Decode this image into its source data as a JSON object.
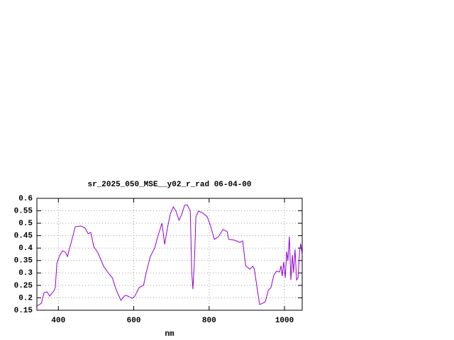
{
  "chart_data": {
    "type": "line",
    "title": "sr_2025_050_MSE__y02_r_rad 06-04-00",
    "xlabel": "nm",
    "x": [
      343,
      355,
      362,
      370,
      377,
      389,
      392,
      396,
      404,
      411,
      419,
      424,
      434,
      445,
      460,
      471,
      479,
      486,
      494,
      505,
      520,
      532,
      543,
      554,
      566,
      577,
      584,
      596,
      603,
      614,
      626,
      633,
      644,
      656,
      663,
      675,
      682,
      690,
      697,
      705,
      712,
      720,
      727,
      735,
      742,
      750,
      754,
      757,
      761,
      765,
      772,
      784,
      795,
      803,
      814,
      825,
      837,
      848,
      852,
      867,
      882,
      889,
      897,
      908,
      916,
      920,
      927,
      934,
      942,
      949,
      957,
      964,
      972,
      979,
      987,
      991,
      994,
      998,
      1002,
      1006,
      1009,
      1013,
      1017,
      1021,
      1024,
      1028,
      1032,
      1036,
      1040,
      1043,
      1047
    ],
    "series": [
      {
        "color": "#9400d3",
        "values": [
          0.167,
          0.178,
          0.221,
          0.224,
          0.207,
          0.23,
          0.244,
          0.338,
          0.372,
          0.389,
          0.383,
          0.366,
          0.423,
          0.486,
          0.489,
          0.48,
          0.458,
          0.463,
          0.406,
          0.381,
          0.327,
          0.301,
          0.281,
          0.23,
          0.19,
          0.21,
          0.207,
          0.198,
          0.207,
          0.241,
          0.25,
          0.301,
          0.366,
          0.401,
          0.443,
          0.5,
          0.415,
          0.486,
          0.537,
          0.566,
          0.549,
          0.512,
          0.534,
          0.572,
          0.574,
          0.549,
          0.301,
          0.235,
          0.344,
          0.526,
          0.549,
          0.54,
          0.526,
          0.492,
          0.435,
          0.446,
          0.475,
          0.466,
          0.435,
          0.432,
          0.423,
          0.429,
          0.329,
          0.315,
          0.327,
          0.315,
          0.244,
          0.173,
          0.178,
          0.184,
          0.23,
          0.241,
          0.292,
          0.307,
          0.304,
          0.329,
          0.287,
          0.344,
          0.281,
          0.386,
          0.349,
          0.446,
          0.272,
          0.372,
          0.301,
          0.395,
          0.272,
          0.281,
          0.386,
          0.418,
          0.372
        ]
      }
    ],
    "xlim": [
      343,
      1047
    ],
    "ylim": [
      0.15,
      0.6
    ],
    "xticks": [
      400,
      600,
      800,
      1000
    ],
    "yticks": [
      0.15,
      0.2,
      0.25,
      0.3,
      0.35,
      0.4,
      0.45,
      0.5,
      0.55,
      0.6
    ],
    "grid": true
  }
}
